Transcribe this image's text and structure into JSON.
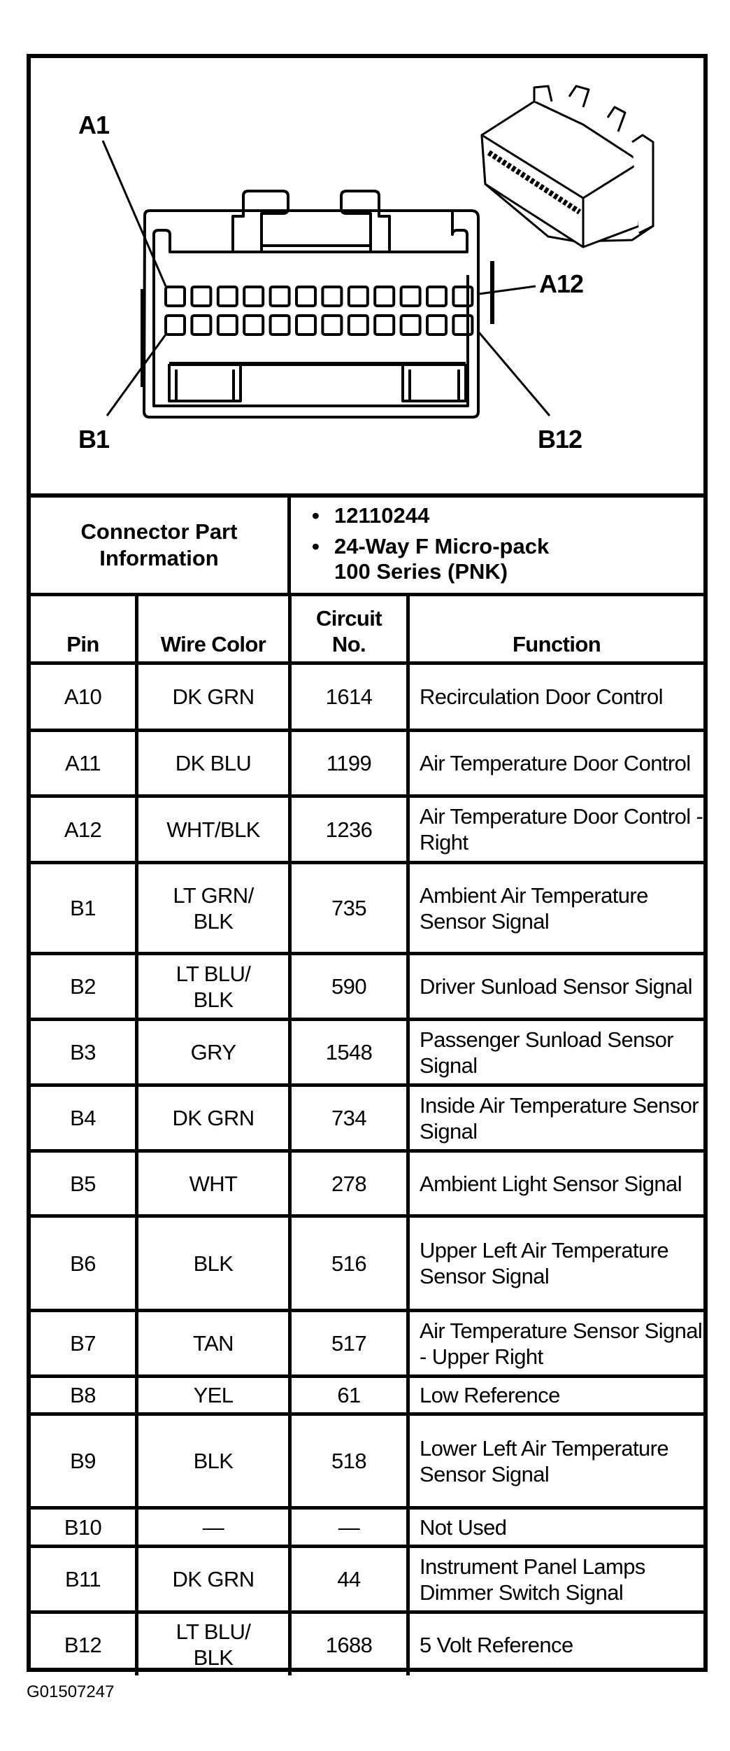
{
  "diagram": {
    "labels": {
      "a1": "A1",
      "a12": "A12",
      "b1": "B1",
      "b12": "B12"
    }
  },
  "connector_info": {
    "label": "Connector Part Information",
    "items": [
      "12110244",
      "24-Way F Micro-pack 100 Series (PNK)"
    ]
  },
  "table": {
    "headers": [
      "Pin",
      "Wire Color",
      "Circuit No.",
      "Function"
    ],
    "rows": [
      {
        "pin": "A10",
        "wire": "DK GRN",
        "circuit": "1614",
        "function": "Recirculation Door Control"
      },
      {
        "pin": "A11",
        "wire": "DK BLU",
        "circuit": "1199",
        "function": "Air Temperature Door Control"
      },
      {
        "pin": "A12",
        "wire": "WHT/BLK",
        "circuit": "1236",
        "function": "Air Temperature Door Control - Right"
      },
      {
        "pin": "B1",
        "wire": "LT GRN/ BLK",
        "circuit": "735",
        "function": "Ambient Air Temperature Sensor Signal"
      },
      {
        "pin": "B2",
        "wire": "LT BLU/ BLK",
        "circuit": "590",
        "function": "Driver Sunload Sensor Signal"
      },
      {
        "pin": "B3",
        "wire": "GRY",
        "circuit": "1548",
        "function": "Passenger Sunload Sensor Signal"
      },
      {
        "pin": "B4",
        "wire": "DK GRN",
        "circuit": "734",
        "function": "Inside Air Temperature Sensor Signal"
      },
      {
        "pin": "B5",
        "wire": "WHT",
        "circuit": "278",
        "function": "Ambient Light Sensor Signal"
      },
      {
        "pin": "B6",
        "wire": "BLK",
        "circuit": "516",
        "function": "Upper Left Air Temperature Sensor Signal"
      },
      {
        "pin": "B7",
        "wire": "TAN",
        "circuit": "517",
        "function": "Air Temperature Sensor Signal - Upper Right"
      },
      {
        "pin": "B8",
        "wire": "YEL",
        "circuit": "61",
        "function": "Low Reference"
      },
      {
        "pin": "B9",
        "wire": "BLK",
        "circuit": "518",
        "function": "Lower Left Air Temperature Sensor Signal"
      },
      {
        "pin": "B10",
        "wire": "—",
        "circuit": "—",
        "function": "Not Used"
      },
      {
        "pin": "B11",
        "wire": "DK GRN",
        "circuit": "44",
        "function": "Instrument Panel Lamps Dimmer Switch Signal"
      },
      {
        "pin": "B12",
        "wire": "LT BLU/ BLK",
        "circuit": "1688",
        "function": "5 Volt Reference"
      }
    ]
  },
  "footer": {
    "figure_id": "G01507247"
  }
}
